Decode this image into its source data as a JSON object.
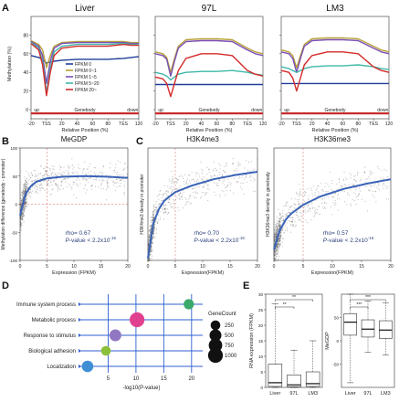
{
  "chart_data": [
    {
      "panel": "A",
      "type": "line",
      "ylabel": "Methylation (%)",
      "xlabel": "Relative Position (%)",
      "ylim": [
        0,
        100
      ],
      "ticks": [
        "-20",
        "TSS",
        "20",
        "40",
        "60",
        "80",
        "TES",
        "120"
      ],
      "yticks": [
        "0",
        "20",
        "40",
        "60",
        "80"
      ],
      "region_labels": [
        "up",
        "Genebody",
        "down"
      ],
      "legend": [
        "FPKM 0",
        "FPKM 0~1",
        "FPKM 1~5",
        "FPKM 5~20",
        "FPKM 20~"
      ],
      "colors": [
        "#1f3d99",
        "#b8a23a",
        "#7a4fb5",
        "#3fb8a8",
        "#d42a2a"
      ],
      "x": [
        -20,
        -10,
        -5,
        0,
        5,
        10,
        20,
        40,
        60,
        80,
        100,
        110,
        120
      ],
      "subcharts": [
        {
          "title": "Liver",
          "series": [
            {
              "name": "FPKM 0",
              "values": [
                58,
                56,
                54,
                50,
                51,
                52,
                53,
                54,
                54,
                54,
                55,
                56,
                57
              ]
            },
            {
              "name": "FPKM 0~1",
              "values": [
                74,
                70,
                64,
                45,
                58,
                68,
                72,
                73,
                73,
                73,
                73,
                72,
                72
              ]
            },
            {
              "name": "FPKM 1~5",
              "values": [
                73,
                68,
                58,
                28,
                52,
                66,
                71,
                72,
                72,
                72,
                72,
                71,
                71
              ]
            },
            {
              "name": "FPKM 5~20",
              "values": [
                72,
                66,
                52,
                18,
                44,
                62,
                68,
                70,
                70,
                70,
                71,
                70,
                70
              ]
            },
            {
              "name": "FPKM 20~",
              "values": [
                71,
                64,
                48,
                15,
                40,
                58,
                66,
                68,
                68,
                68,
                70,
                69,
                69
              ]
            }
          ]
        },
        {
          "title": "97L",
          "series": [
            {
              "name": "FPKM 0",
              "values": [
                27,
                27,
                27,
                27,
                27,
                27,
                27,
                27,
                27,
                27,
                27,
                27,
                27
              ]
            },
            {
              "name": "FPKM 0~1",
              "values": [
                62,
                60,
                56,
                40,
                55,
                68,
                75,
                76,
                76,
                75,
                66,
                62,
                60
              ]
            },
            {
              "name": "FPKM 1~5",
              "values": [
                60,
                58,
                54,
                36,
                52,
                66,
                73,
                74,
                74,
                73,
                64,
                60,
                58
              ]
            },
            {
              "name": "FPKM 5~20",
              "values": [
                40,
                38,
                36,
                32,
                35,
                38,
                40,
                41,
                41,
                42,
                40,
                38,
                37
              ]
            },
            {
              "name": "FPKM 20~",
              "values": [
                35,
                33,
                28,
                14,
                28,
                42,
                55,
                60,
                60,
                58,
                42,
                38,
                36
              ]
            }
          ]
        },
        {
          "title": "LM3",
          "series": [
            {
              "name": "FPKM 0",
              "values": [
                28,
                28,
                28,
                28,
                28,
                28,
                28,
                28,
                28,
                28,
                28,
                28,
                28
              ]
            },
            {
              "name": "FPKM 0~1",
              "values": [
                64,
                62,
                58,
                45,
                58,
                70,
                76,
                77,
                77,
                76,
                68,
                64,
                62
              ]
            },
            {
              "name": "FPKM 1~5",
              "values": [
                62,
                60,
                55,
                40,
                55,
                68,
                74,
                75,
                75,
                74,
                66,
                62,
                60
              ]
            },
            {
              "name": "FPKM 5~20",
              "values": [
                46,
                44,
                42,
                40,
                42,
                44,
                46,
                47,
                47,
                48,
                46,
                44,
                43
              ]
            },
            {
              "name": "FPKM 20~",
              "values": [
                42,
                40,
                34,
                20,
                34,
                48,
                58,
                62,
                62,
                60,
                46,
                42,
                40
              ]
            }
          ]
        }
      ]
    },
    {
      "panel": "B",
      "type": "scatter",
      "title": "MeGDP",
      "xlabel": "Expression (FPKM)",
      "ylabel": "Methylation difference (genebody - promoter)",
      "xlim": [
        0,
        20
      ],
      "ylim": [
        -100,
        100
      ],
      "xticks": [
        "0",
        "5",
        "10",
        "15",
        "20"
      ],
      "yticks": [
        "-100",
        "-50",
        "0",
        "50",
        "100"
      ],
      "fit_x": [
        0,
        1,
        2,
        3,
        5,
        8,
        12,
        16,
        20
      ],
      "fit_y": [
        -20,
        18,
        32,
        40,
        46,
        49,
        50,
        49,
        47
      ],
      "annotation": {
        "rho": "rho= 0.67",
        "pvalue_prefix": "P",
        "pvalue_text": "-value < 2.2x10",
        "pvalue_exp": "-16"
      }
    },
    {
      "panel": "C",
      "type": "scatter",
      "title": "H3K4me3",
      "xlabel": "Expression(FPKM)",
      "ylabel": "H3K4me3 density in promoter",
      "xlim": [
        0,
        20
      ],
      "xticks": [
        "0",
        "5",
        "10",
        "15",
        "20"
      ],
      "fit_x": [
        0,
        1,
        2,
        3,
        5,
        8,
        12,
        16,
        20
      ],
      "fit_y": [
        0.02,
        0.35,
        0.48,
        0.56,
        0.64,
        0.7,
        0.76,
        0.8,
        0.83
      ],
      "annotation": {
        "rho": "rho= 0.70",
        "pvalue_prefix": "P",
        "pvalue_text": "-value < 2.2x10",
        "pvalue_exp": "-16"
      }
    },
    {
      "panel": "C2",
      "type": "scatter",
      "title": "H3K36me3",
      "xlabel": "Expression(FPKM)",
      "ylabel": "H3K36me3 density in genebody",
      "xlim": [
        0,
        20
      ],
      "xticks": [
        "0",
        "5",
        "10",
        "15",
        "20"
      ],
      "fit_x": [
        0,
        1,
        2,
        3,
        5,
        8,
        12,
        16,
        20
      ],
      "fit_y": [
        0.1,
        0.28,
        0.38,
        0.44,
        0.52,
        0.6,
        0.67,
        0.72,
        0.76
      ],
      "annotation": {
        "rho": "rho= 0.57",
        "pvalue_prefix": "P",
        "pvalue_text": "-value < 2.2x10",
        "pvalue_exp": "-16"
      }
    },
    {
      "panel": "D",
      "type": "scatter",
      "xlabel": "-log10(P-value)",
      "xlim": [
        0,
        22
      ],
      "xticks": [
        "5",
        "10",
        "15",
        "20"
      ],
      "categories": [
        "Immune system process",
        "Metabolic process",
        "Response to stimulus",
        "Biological adhesion",
        "Localization"
      ],
      "points": [
        {
          "category": "Immune system process",
          "x": 19.5,
          "gene_count": 300,
          "color": "#3aa96a"
        },
        {
          "category": "Metabolic process",
          "x": 10.2,
          "gene_count": 1000,
          "color": "#e0418e"
        },
        {
          "category": "Response to stimulus",
          "x": 6.3,
          "gene_count": 500,
          "color": "#9177c2"
        },
        {
          "category": "Biological adhesion",
          "x": 4.6,
          "gene_count": 250,
          "color": "#8cbf3a"
        },
        {
          "category": "Localization",
          "x": 1.3,
          "gene_count": 450,
          "color": "#3f8fd4"
        }
      ],
      "legend_title": "GeneCount",
      "legend": [
        "250",
        "500",
        "750",
        "1000"
      ]
    },
    {
      "panel": "E",
      "type": "box",
      "categories": [
        "Liver",
        "97L",
        "LM3"
      ],
      "subcharts": [
        {
          "ylabel": "RNA expression (FPKM)",
          "ylim": [
            0,
            30
          ],
          "yticks": [
            "0",
            "5",
            "10",
            "15",
            "20",
            "25",
            "30"
          ],
          "boxes": [
            {
              "lo": 0,
              "q1": 0.3,
              "med": 1.5,
              "q3": 7.5,
              "hi": 27
            },
            {
              "lo": 0,
              "q1": 0.2,
              "med": 0.8,
              "q3": 4,
              "hi": 12
            },
            {
              "lo": 0,
              "q1": 0.3,
              "med": 1.2,
              "q3": 5,
              "hi": 15
            }
          ],
          "significance": [
            "**",
            "**"
          ]
        },
        {
          "ylabel": "MeGDP",
          "ylim": [
            -100,
            100
          ],
          "yticks": [
            "-50",
            "0",
            "50"
          ],
          "boxes": [
            {
              "lo": -90,
              "q1": 12,
              "med": 40,
              "q3": 58,
              "hi": 100
            },
            {
              "lo": -25,
              "q1": 8,
              "med": 25,
              "q3": 45,
              "hi": 85
            },
            {
              "lo": -30,
              "q1": 5,
              "med": 23,
              "q3": 43,
              "hi": 82
            }
          ],
          "significance": [
            "***",
            "***"
          ]
        }
      ]
    }
  ],
  "panel_labels": [
    "A",
    "B",
    "C",
    "D",
    "E"
  ]
}
